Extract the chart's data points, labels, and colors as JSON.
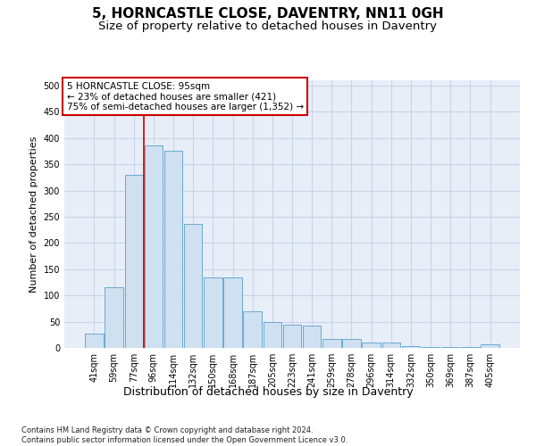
{
  "title": "5, HORNCASTLE CLOSE, DAVENTRY, NN11 0GH",
  "subtitle": "Size of property relative to detached houses in Daventry",
  "xlabel": "Distribution of detached houses by size in Daventry",
  "ylabel": "Number of detached properties",
  "bar_labels": [
    "41sqm",
    "59sqm",
    "77sqm",
    "96sqm",
    "114sqm",
    "132sqm",
    "150sqm",
    "168sqm",
    "187sqm",
    "205sqm",
    "223sqm",
    "241sqm",
    "259sqm",
    "278sqm",
    "296sqm",
    "314sqm",
    "332sqm",
    "350sqm",
    "369sqm",
    "387sqm",
    "405sqm"
  ],
  "bar_values": [
    28,
    116,
    330,
    386,
    375,
    237,
    135,
    135,
    70,
    50,
    45,
    42,
    17,
    17,
    10,
    10,
    3,
    2,
    2,
    2,
    6
  ],
  "bar_color": "#cfe0f0",
  "bar_edge_color": "#6aaad4",
  "marker_color": "#cc0000",
  "annotation_text": "5 HORNCASTLE CLOSE: 95sqm\n← 23% of detached houses are smaller (421)\n75% of semi-detached houses are larger (1,352) →",
  "annotation_box_color": "#ffffff",
  "annotation_box_edge": "#cc0000",
  "ylim": [
    0,
    510
  ],
  "yticks": [
    0,
    50,
    100,
    150,
    200,
    250,
    300,
    350,
    400,
    450,
    500
  ],
  "grid_color": "#c8d4e8",
  "bg_color": "#e8eef8",
  "footer": "Contains HM Land Registry data © Crown copyright and database right 2024.\nContains public sector information licensed under the Open Government Licence v3.0.",
  "title_fontsize": 11,
  "subtitle_fontsize": 9.5,
  "tick_fontsize": 7,
  "ylabel_fontsize": 8,
  "xlabel_fontsize": 9,
  "annotation_fontsize": 7.5,
  "footer_fontsize": 6
}
